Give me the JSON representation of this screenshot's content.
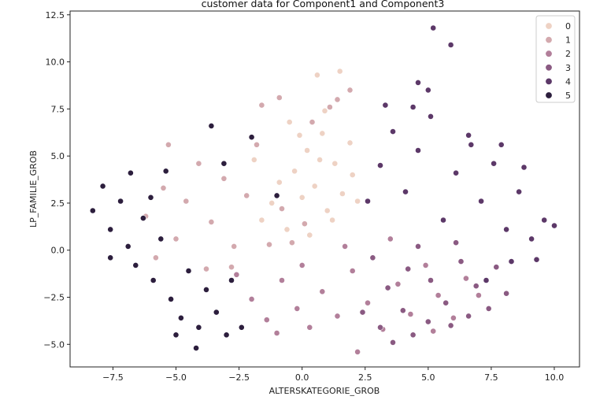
{
  "chart_data": {
    "type": "scatter",
    "title": "customer data for Component1 and Component3",
    "xlabel": "ALTERSKATEGORIE_GROB",
    "ylabel": "LP_FAMILIE_GROB",
    "xlim": [
      -9.2,
      11.0
    ],
    "ylim": [
      -6.2,
      12.7
    ],
    "xticks": [
      -7.5,
      -5.0,
      -2.5,
      0.0,
      2.5,
      5.0,
      7.5,
      10.0
    ],
    "xtick_labels": [
      "−7.5",
      "−5.0",
      "−2.5",
      "0.0",
      "2.5",
      "5.0",
      "7.5",
      "10.0"
    ],
    "yticks": [
      -5.0,
      -2.5,
      0.0,
      2.5,
      5.0,
      7.5,
      10.0,
      12.5
    ],
    "ytick_labels": [
      "−5.0",
      "−2.5",
      "0.0",
      "2.5",
      "5.0",
      "7.5",
      "10.0",
      "12.5"
    ],
    "grid": false,
    "legend_position": "top-right",
    "series": [
      {
        "name": "0",
        "color": "#eed2c4",
        "points": [
          [
            -1.6,
            1.6
          ],
          [
            -1.2,
            2.5
          ],
          [
            -0.9,
            3.6
          ],
          [
            -0.6,
            1.1
          ],
          [
            -0.3,
            4.2
          ],
          [
            0.0,
            2.8
          ],
          [
            0.2,
            5.3
          ],
          [
            0.5,
            3.4
          ],
          [
            0.8,
            6.2
          ],
          [
            1.0,
            2.1
          ],
          [
            1.3,
            4.6
          ],
          [
            1.6,
            3.0
          ],
          [
            1.9,
            5.7
          ],
          [
            2.2,
            2.6
          ],
          [
            -0.5,
            6.8
          ],
          [
            0.9,
            7.4
          ],
          [
            0.6,
            9.3
          ],
          [
            1.5,
            9.5
          ],
          [
            -1.9,
            4.8
          ],
          [
            0.3,
            0.8
          ],
          [
            1.2,
            1.6
          ],
          [
            -0.1,
            6.1
          ],
          [
            2.0,
            4.0
          ],
          [
            0.7,
            4.8
          ]
        ]
      },
      {
        "name": "1",
        "color": "#d3a9ae",
        "points": [
          [
            -6.2,
            1.8
          ],
          [
            -5.5,
            3.3
          ],
          [
            -5.0,
            0.6
          ],
          [
            -4.6,
            2.6
          ],
          [
            -4.1,
            4.6
          ],
          [
            -3.6,
            1.5
          ],
          [
            -3.1,
            3.8
          ],
          [
            -2.7,
            0.2
          ],
          [
            -2.2,
            2.9
          ],
          [
            -1.8,
            5.6
          ],
          [
            -1.3,
            0.3
          ],
          [
            -0.8,
            2.2
          ],
          [
            -0.4,
            0.4
          ],
          [
            0.1,
            1.4
          ],
          [
            0.4,
            6.8
          ],
          [
            1.1,
            7.6
          ],
          [
            1.9,
            8.5
          ],
          [
            -1.6,
            7.7
          ],
          [
            -3.8,
            -1.0
          ],
          [
            -5.8,
            -0.4
          ],
          [
            -5.3,
            5.6
          ],
          [
            -0.9,
            8.1
          ],
          [
            1.4,
            8.0
          ],
          [
            -2.8,
            -0.9
          ]
        ]
      },
      {
        "name": "2",
        "color": "#b27f9a",
        "points": [
          [
            -2.6,
            -1.3
          ],
          [
            -2.0,
            -2.6
          ],
          [
            -1.4,
            -3.7
          ],
          [
            -0.8,
            -1.6
          ],
          [
            -0.2,
            -3.1
          ],
          [
            0.3,
            -4.1
          ],
          [
            0.8,
            -2.2
          ],
          [
            1.4,
            -3.5
          ],
          [
            2.0,
            -1.1
          ],
          [
            2.6,
            -2.8
          ],
          [
            3.2,
            -4.2
          ],
          [
            3.8,
            -1.8
          ],
          [
            4.3,
            -3.4
          ],
          [
            4.9,
            -0.8
          ],
          [
            5.4,
            -2.4
          ],
          [
            6.0,
            -3.6
          ],
          [
            6.5,
            -1.5
          ],
          [
            2.2,
            -5.4
          ],
          [
            -1.0,
            -4.4
          ],
          [
            1.7,
            0.2
          ],
          [
            5.2,
            -4.3
          ],
          [
            0.0,
            -0.8
          ],
          [
            3.5,
            0.6
          ],
          [
            7.0,
            -2.4
          ]
        ]
      },
      {
        "name": "3",
        "color": "#8a5a82",
        "points": [
          [
            2.8,
            -0.4
          ],
          [
            3.4,
            -2.0
          ],
          [
            4.0,
            -3.2
          ],
          [
            4.6,
            0.2
          ],
          [
            5.1,
            -1.6
          ],
          [
            5.7,
            -2.8
          ],
          [
            6.3,
            -0.6
          ],
          [
            6.9,
            -1.9
          ],
          [
            7.4,
            -3.1
          ],
          [
            3.1,
            -4.1
          ],
          [
            4.4,
            -4.5
          ],
          [
            5.9,
            -4.0
          ],
          [
            6.6,
            -3.5
          ],
          [
            2.4,
            -3.3
          ],
          [
            7.7,
            -0.9
          ],
          [
            8.1,
            -2.3
          ],
          [
            3.6,
            -4.9
          ],
          [
            5.0,
            -3.8
          ],
          [
            6.1,
            0.4
          ],
          [
            4.2,
            -1.0
          ]
        ]
      },
      {
        "name": "4",
        "color": "#5c3868",
        "points": [
          [
            2.6,
            2.6
          ],
          [
            3.1,
            4.5
          ],
          [
            3.6,
            6.3
          ],
          [
            4.1,
            3.1
          ],
          [
            4.6,
            5.3
          ],
          [
            5.1,
            7.1
          ],
          [
            5.6,
            1.6
          ],
          [
            6.1,
            4.1
          ],
          [
            6.6,
            6.1
          ],
          [
            7.1,
            2.6
          ],
          [
            7.6,
            4.6
          ],
          [
            8.1,
            1.1
          ],
          [
            8.6,
            3.1
          ],
          [
            9.1,
            0.6
          ],
          [
            9.6,
            1.6
          ],
          [
            10.0,
            1.3
          ],
          [
            8.3,
            -0.6
          ],
          [
            7.3,
            -1.6
          ],
          [
            9.3,
            -0.5
          ],
          [
            4.6,
            8.9
          ],
          [
            5.2,
            11.8
          ],
          [
            5.9,
            10.9
          ],
          [
            5.0,
            8.5
          ],
          [
            6.7,
            5.6
          ],
          [
            8.8,
            4.4
          ],
          [
            4.4,
            7.6
          ],
          [
            3.3,
            7.7
          ],
          [
            7.9,
            5.6
          ]
        ]
      },
      {
        "name": "5",
        "color": "#2c1e3d",
        "points": [
          [
            -8.3,
            2.1
          ],
          [
            -7.9,
            3.4
          ],
          [
            -7.6,
            1.1
          ],
          [
            -7.2,
            2.6
          ],
          [
            -6.9,
            0.2
          ],
          [
            -6.6,
            -0.8
          ],
          [
            -6.3,
            1.7
          ],
          [
            -5.9,
            -1.6
          ],
          [
            -5.6,
            0.6
          ],
          [
            -5.2,
            -2.6
          ],
          [
            -4.8,
            -3.6
          ],
          [
            -4.5,
            -1.1
          ],
          [
            -4.1,
            -4.1
          ],
          [
            -3.8,
            -2.1
          ],
          [
            -3.4,
            -3.3
          ],
          [
            -3.1,
            4.6
          ],
          [
            -2.8,
            -1.6
          ],
          [
            -4.2,
            -5.2
          ],
          [
            -6.0,
            2.8
          ],
          [
            -5.4,
            4.2
          ],
          [
            -2.0,
            6.0
          ],
          [
            -1.0,
            2.9
          ],
          [
            -7.6,
            -0.4
          ],
          [
            -3.6,
            6.6
          ],
          [
            -2.4,
            -4.1
          ],
          [
            -6.8,
            4.1
          ],
          [
            -5.0,
            -4.5
          ],
          [
            -3.0,
            -4.5
          ]
        ]
      }
    ]
  }
}
